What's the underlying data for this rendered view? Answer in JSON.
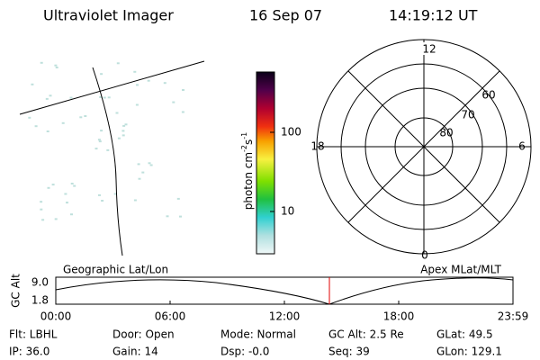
{
  "header": {
    "title": "Ultraviolet Imager",
    "date": "16 Sep 07",
    "time": "14:19:12 UT"
  },
  "colorbar": {
    "label": [
      "photon cm",
      "-2",
      "s",
      "-1"
    ],
    "ticks": [
      "100",
      "10"
    ]
  },
  "polar": {
    "mlt_labels": [
      "12",
      "6",
      "0",
      "18"
    ],
    "lat_labels": [
      "60",
      "70",
      "80"
    ]
  },
  "altitude_plot": {
    "left_label": "Geographic Lat/Lon",
    "right_label": "Apex MLat/MLT",
    "y_label": "GC Alt",
    "y_ticks": [
      "9.0",
      "1.8"
    ],
    "x_ticks": [
      "00:00",
      "06:00",
      "12:00",
      "18:00",
      "23:59"
    ]
  },
  "footer": {
    "rows": [
      [
        "Flt: LBHL",
        "Door: Open",
        "Mode: Normal",
        "GC Alt: 2.5 Re",
        "GLat: 49.5"
      ],
      [
        "IP: 36.0",
        "Gain: 14",
        "Dsp:    -0.0",
        "Seq: 39",
        "GLon: 129.1"
      ]
    ]
  }
}
